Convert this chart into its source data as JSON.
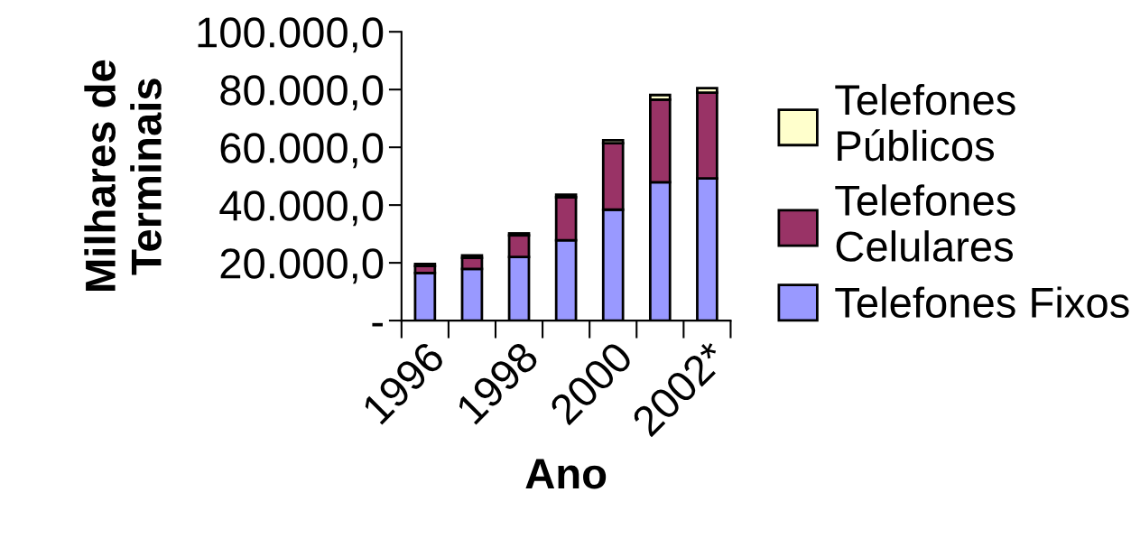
{
  "chart_data": {
    "type": "bar",
    "stacked": true,
    "xlabel": "Ano",
    "ylabel": "Milhares de Terminais",
    "categories": [
      "1996",
      null,
      "1998",
      null,
      "2000",
      null,
      "2002*"
    ],
    "series": [
      {
        "name": "Telefones Fixos",
        "color": "#9999ff",
        "values": [
          16500.0,
          17900.0,
          22000.0,
          27800.0,
          38400.0,
          47900.0,
          49200.0
        ]
      },
      {
        "name": "Telefones Celulares",
        "color": "#993366",
        "values": [
          2400.0,
          3800.0,
          7500.0,
          14900.0,
          23000.0,
          28600.0,
          29700.0
        ]
      },
      {
        "name": "Telefones Públicos",
        "color": "#ffffcc",
        "values": [
          700.0,
          900.0,
          700.0,
          900.0,
          1000.0,
          1600.0,
          1600.0
        ]
      }
    ],
    "ylim": [
      0,
      100000
    ],
    "yticks": [
      {
        "value": 0,
        "label": "-"
      },
      {
        "value": 20000,
        "label": "20.000,0"
      },
      {
        "value": 40000,
        "label": "40.000,0"
      },
      {
        "value": 60000,
        "label": "60.000,0"
      },
      {
        "value": 80000,
        "label": "80.000,0"
      },
      {
        "value": 100000,
        "label": "100.000,0"
      }
    ],
    "grid": false,
    "legend": "right"
  }
}
